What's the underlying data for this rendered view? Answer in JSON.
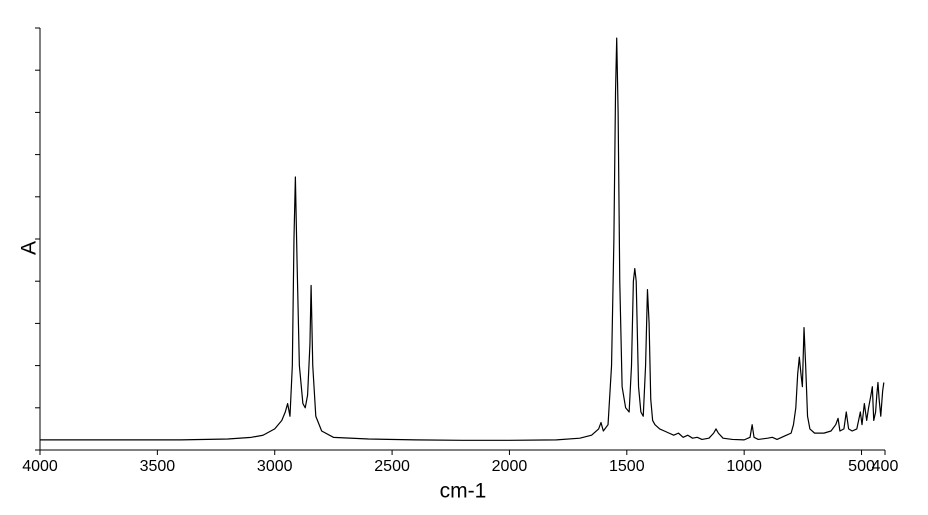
{
  "chart_data": {
    "type": "line",
    "x_label": "cm-1",
    "y_label": "A",
    "xlim": [
      4000,
      400
    ],
    "xticks": [
      4000,
      3500,
      3000,
      2500,
      2000,
      1500,
      1000,
      500,
      400
    ],
    "ylim": [
      0,
      1
    ],
    "yticks": [
      0,
      0.1,
      0.2,
      0.3,
      0.4,
      0.5,
      0.6,
      0.7,
      0.8,
      0.9,
      1
    ],
    "ytick_labels": false,
    "grid": false,
    "x": [
      4000,
      3700,
      3400,
      3200,
      3100,
      3050,
      3000,
      2970,
      2955,
      2945,
      2935,
      2925,
      2918,
      2912,
      2905,
      2895,
      2880,
      2870,
      2860,
      2850,
      2845,
      2838,
      2825,
      2800,
      2750,
      2600,
      2400,
      2200,
      2000,
      1800,
      1700,
      1650,
      1620,
      1610,
      1600,
      1580,
      1565,
      1555,
      1548,
      1543,
      1537,
      1530,
      1520,
      1505,
      1490,
      1480,
      1472,
      1466,
      1460,
      1450,
      1440,
      1430,
      1420,
      1412,
      1405,
      1398,
      1390,
      1380,
      1360,
      1340,
      1320,
      1300,
      1280,
      1260,
      1240,
      1220,
      1200,
      1180,
      1150,
      1130,
      1120,
      1110,
      1090,
      1050,
      1000,
      975,
      966,
      958,
      940,
      900,
      880,
      860,
      840,
      820,
      800,
      790,
      780,
      772,
      765,
      758,
      752,
      745,
      738,
      730,
      720,
      700,
      660,
      630,
      610,
      600,
      592,
      575,
      565,
      555,
      540,
      520,
      505,
      498,
      488,
      478,
      470,
      460,
      454,
      448,
      440,
      435,
      430,
      425,
      418,
      410,
      405
    ],
    "series": [
      {
        "name": "spectrum",
        "color": "#000000",
        "values": [
          0.024,
          0.024,
          0.024,
          0.026,
          0.03,
          0.035,
          0.05,
          0.07,
          0.09,
          0.11,
          0.08,
          0.2,
          0.5,
          0.647,
          0.45,
          0.2,
          0.11,
          0.1,
          0.13,
          0.25,
          0.39,
          0.2,
          0.08,
          0.045,
          0.03,
          0.026,
          0.024,
          0.023,
          0.023,
          0.024,
          0.028,
          0.035,
          0.05,
          0.065,
          0.045,
          0.06,
          0.2,
          0.5,
          0.85,
          0.976,
          0.8,
          0.4,
          0.15,
          0.1,
          0.09,
          0.2,
          0.4,
          0.43,
          0.4,
          0.15,
          0.09,
          0.08,
          0.2,
          0.38,
          0.3,
          0.12,
          0.07,
          0.06,
          0.05,
          0.045,
          0.04,
          0.035,
          0.04,
          0.03,
          0.035,
          0.028,
          0.03,
          0.025,
          0.028,
          0.04,
          0.05,
          0.04,
          0.028,
          0.025,
          0.024,
          0.03,
          0.06,
          0.03,
          0.025,
          0.028,
          0.03,
          0.025,
          0.03,
          0.035,
          0.04,
          0.06,
          0.1,
          0.18,
          0.22,
          0.18,
          0.15,
          0.29,
          0.2,
          0.08,
          0.05,
          0.04,
          0.04,
          0.045,
          0.06,
          0.075,
          0.045,
          0.05,
          0.09,
          0.05,
          0.045,
          0.05,
          0.09,
          0.06,
          0.11,
          0.07,
          0.1,
          0.13,
          0.15,
          0.07,
          0.09,
          0.13,
          0.16,
          0.12,
          0.08,
          0.14,
          0.16
        ]
      }
    ]
  }
}
